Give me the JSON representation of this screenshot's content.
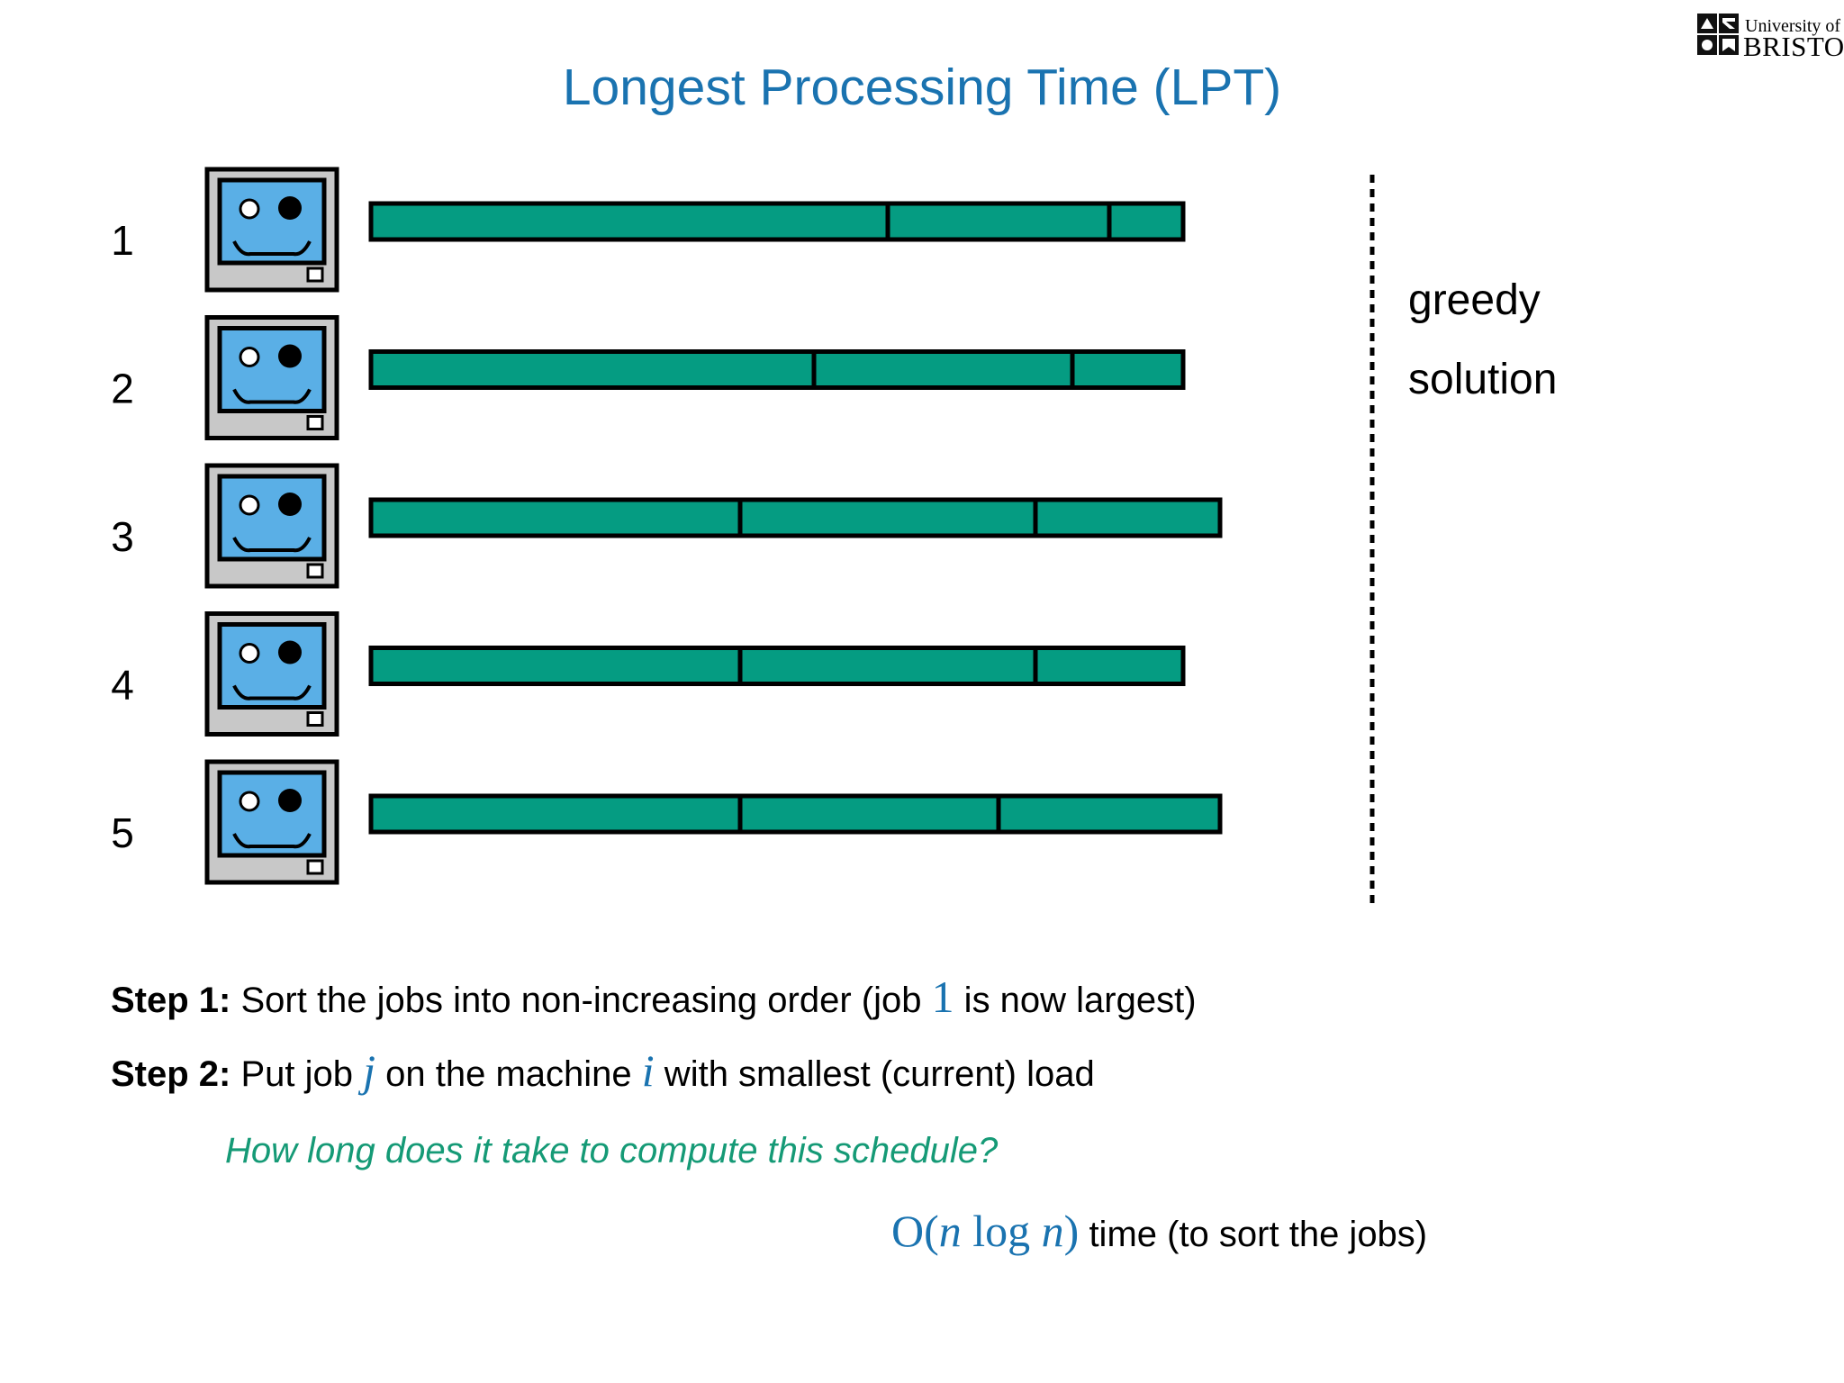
{
  "title": "Longest Processing Time (LPT)",
  "logo": {
    "line1": "University of",
    "line2": "BRISTOL"
  },
  "machines": [
    {
      "label": "1",
      "jobs": [
        14,
        6,
        2
      ]
    },
    {
      "label": "2",
      "jobs": [
        12,
        7,
        3
      ]
    },
    {
      "label": "3",
      "jobs": [
        10,
        8,
        5
      ]
    },
    {
      "label": "4",
      "jobs": [
        10,
        8,
        4
      ]
    },
    {
      "label": "5",
      "jobs": [
        10,
        7,
        6
      ]
    }
  ],
  "side_text": {
    "line1": "greedy",
    "line2": "solution"
  },
  "steps": [
    {
      "bold": "Step 1:",
      "text_a": " Sort the jobs into non-increasing order (job ",
      "math": "1",
      "text_b": " is now largest)"
    },
    {
      "bold": "Step 2:",
      "text_a": " Put job ",
      "math_j": "j",
      "text_b": " on the machine ",
      "math_i": "i",
      "text_c": " with smallest (current) load"
    }
  ],
  "question": "How long does it take to compute this schedule?",
  "complexity": {
    "math_open": "O(",
    "math_n1": "n",
    "math_log": " log ",
    "math_n2": "n",
    "math_close": ")",
    "text": " time (to sort the jobs)"
  },
  "colors": {
    "title": "#1a73b0",
    "job_fill": "#059c82",
    "question": "#159a76",
    "screen": "#5aafe6",
    "case": "#c8c8c8"
  },
  "icons": [
    "computer-icon",
    "university-logo-icon"
  ]
}
